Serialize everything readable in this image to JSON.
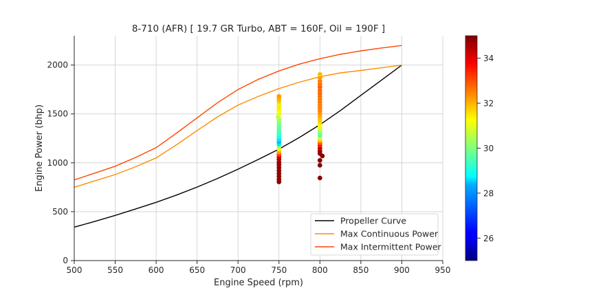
{
  "chart_data": {
    "type": "line",
    "title": "8-710 (AFR)  [ 19.7 GR Turbo, ABT = 160F, Oil = 190F ]",
    "xlabel": "Engine Speed (rpm)",
    "ylabel": "Engine Power (bhp)",
    "xlim": [
      500,
      950
    ],
    "ylim": [
      0,
      2300
    ],
    "xticks": [
      500,
      550,
      600,
      650,
      700,
      750,
      800,
      850,
      900,
      950
    ],
    "yticks": [
      0,
      500,
      1000,
      1500,
      2000
    ],
    "grid": true,
    "legend_placement": "lower-right",
    "series": [
      {
        "name": "Propeller Curve",
        "color": "#000000",
        "x": [
          500,
          525,
          550,
          575,
          600,
          625,
          650,
          675,
          700,
          725,
          750,
          775,
          800,
          825,
          850,
          875,
          900
        ],
        "y": [
          342,
          400,
          462,
          528,
          596,
          670,
          752,
          840,
          935,
          1035,
          1140,
          1260,
          1390,
          1535,
          1690,
          1845,
          2000
        ]
      },
      {
        "name": "Max Continuous Power",
        "color": "#ff8c00",
        "x": [
          500,
          525,
          550,
          575,
          600,
          625,
          650,
          675,
          700,
          725,
          750,
          775,
          800,
          825,
          850,
          875,
          900
        ],
        "y": [
          750,
          815,
          880,
          960,
          1050,
          1185,
          1330,
          1470,
          1590,
          1680,
          1760,
          1825,
          1880,
          1920,
          1945,
          1972,
          2000
        ]
      },
      {
        "name": "Max Intermittent Power",
        "color": "#ff4500",
        "x": [
          500,
          525,
          550,
          575,
          600,
          625,
          650,
          675,
          700,
          725,
          750,
          775,
          800,
          825,
          850,
          875,
          900
        ],
        "y": [
          825,
          895,
          965,
          1055,
          1155,
          1305,
          1460,
          1615,
          1750,
          1855,
          1940,
          2010,
          2065,
          2110,
          2145,
          2175,
          2200
        ]
      }
    ],
    "scatter": {
      "colorbar_label": "",
      "colorbar_range": [
        25,
        35
      ],
      "colorbar_ticks": [
        26,
        28,
        30,
        32,
        34
      ],
      "points": [
        {
          "x": 750,
          "y": 805,
          "c": 34.8
        },
        {
          "x": 750,
          "y": 830,
          "c": 34.8
        },
        {
          "x": 750,
          "y": 860,
          "c": 34.8
        },
        {
          "x": 750,
          "y": 890,
          "c": 34.8
        },
        {
          "x": 750,
          "y": 920,
          "c": 34.8
        },
        {
          "x": 750,
          "y": 950,
          "c": 34.8
        },
        {
          "x": 750,
          "y": 980,
          "c": 34.8
        },
        {
          "x": 750,
          "y": 1005,
          "c": 34.7
        },
        {
          "x": 750,
          "y": 1035,
          "c": 34.6
        },
        {
          "x": 750,
          "y": 1060,
          "c": 34.2
        },
        {
          "x": 750,
          "y": 1085,
          "c": 33.2
        },
        {
          "x": 750,
          "y": 1110,
          "c": 32.2
        },
        {
          "x": 750,
          "y": 1140,
          "c": 31.4
        },
        {
          "x": 750,
          "y": 1165,
          "c": 30.5
        },
        {
          "x": 750,
          "y": 1190,
          "c": 28.6
        },
        {
          "x": 750,
          "y": 1215,
          "c": 28.1
        },
        {
          "x": 750,
          "y": 1240,
          "c": 28.5
        },
        {
          "x": 750,
          "y": 1265,
          "c": 29.0
        },
        {
          "x": 750,
          "y": 1290,
          "c": 29.3
        },
        {
          "x": 750,
          "y": 1315,
          "c": 29.5
        },
        {
          "x": 750,
          "y": 1340,
          "c": 29.6
        },
        {
          "x": 750,
          "y": 1365,
          "c": 29.7
        },
        {
          "x": 750,
          "y": 1390,
          "c": 29.8
        },
        {
          "x": 750,
          "y": 1420,
          "c": 30.1
        },
        {
          "x": 750,
          "y": 1445,
          "c": 30.4
        },
        {
          "x": 749,
          "y": 1470,
          "c": 30.6
        },
        {
          "x": 750,
          "y": 1500,
          "c": 30.9
        },
        {
          "x": 750,
          "y": 1525,
          "c": 31.2
        },
        {
          "x": 750,
          "y": 1550,
          "c": 31.4
        },
        {
          "x": 750,
          "y": 1580,
          "c": 31.5
        },
        {
          "x": 750,
          "y": 1600,
          "c": 30.8
        },
        {
          "x": 750,
          "y": 1630,
          "c": 31.8
        },
        {
          "x": 750,
          "y": 1655,
          "c": 32.0
        },
        {
          "x": 750,
          "y": 1680,
          "c": 32.2
        },
        {
          "x": 800,
          "y": 845,
          "c": 34.9
        },
        {
          "x": 800,
          "y": 975,
          "c": 34.9
        },
        {
          "x": 800,
          "y": 1025,
          "c": 34.9
        },
        {
          "x": 803,
          "y": 1070,
          "c": 34.9
        },
        {
          "x": 800,
          "y": 1095,
          "c": 34.8
        },
        {
          "x": 800,
          "y": 1120,
          "c": 34.7
        },
        {
          "x": 800,
          "y": 1150,
          "c": 34.4
        },
        {
          "x": 800,
          "y": 1180,
          "c": 33.6
        },
        {
          "x": 800,
          "y": 1205,
          "c": 32.9
        },
        {
          "x": 800,
          "y": 1230,
          "c": 31.8
        },
        {
          "x": 800,
          "y": 1255,
          "c": 30.8
        },
        {
          "x": 800,
          "y": 1280,
          "c": 29.6
        },
        {
          "x": 800,
          "y": 1305,
          "c": 29.9
        },
        {
          "x": 800,
          "y": 1330,
          "c": 30.4
        },
        {
          "x": 800,
          "y": 1355,
          "c": 30.9
        },
        {
          "x": 800,
          "y": 1385,
          "c": 31.3
        },
        {
          "x": 800,
          "y": 1415,
          "c": 31.6
        },
        {
          "x": 800,
          "y": 1440,
          "c": 31.8
        },
        {
          "x": 800,
          "y": 1470,
          "c": 32.0
        },
        {
          "x": 800,
          "y": 1500,
          "c": 32.2
        },
        {
          "x": 800,
          "y": 1530,
          "c": 32.4
        },
        {
          "x": 800,
          "y": 1560,
          "c": 32.5
        },
        {
          "x": 800,
          "y": 1590,
          "c": 32.5
        },
        {
          "x": 800,
          "y": 1620,
          "c": 32.5
        },
        {
          "x": 800,
          "y": 1650,
          "c": 32.6
        },
        {
          "x": 800,
          "y": 1680,
          "c": 32.6
        },
        {
          "x": 800,
          "y": 1710,
          "c": 32.7
        },
        {
          "x": 800,
          "y": 1740,
          "c": 32.7
        },
        {
          "x": 800,
          "y": 1775,
          "c": 32.8
        },
        {
          "x": 800,
          "y": 1805,
          "c": 32.7
        },
        {
          "x": 800,
          "y": 1835,
          "c": 32.5
        },
        {
          "x": 800,
          "y": 1870,
          "c": 32.2
        },
        {
          "x": 800,
          "y": 1905,
          "c": 31.9
        }
      ]
    }
  }
}
